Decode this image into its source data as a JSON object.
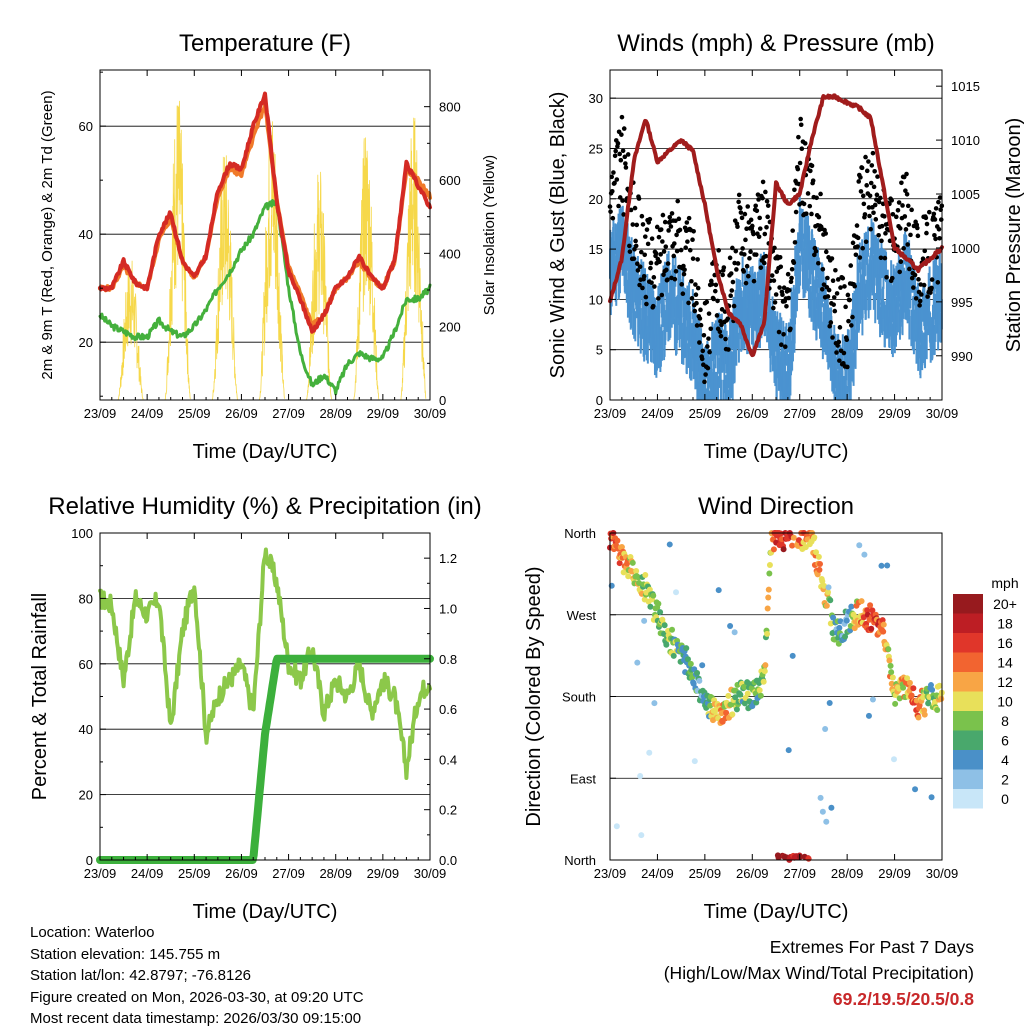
{
  "colors": {
    "temp": "#d42a24",
    "temp9": "#f07a2a",
    "dew": "#44b03c",
    "solar": "#f6d84a",
    "wind": "#4b93d0",
    "gust": "#000000",
    "pressure": "#a01c1c",
    "rh": "#8cc84a",
    "precip": "#3cb03c",
    "extremes": "#c8282a"
  },
  "info": {
    "location": "Location: Waterloo",
    "elevation": "Station elevation: 145.755 m",
    "latlon": "Station lat/lon: 42.8797; -76.8126",
    "created": "Figure created on Mon, 2026-03-30, at 09:20 UTC",
    "recent": "Most recent data timestamp: 2026/03/30 09:15:00"
  },
  "extremes": {
    "title": "Extremes For Past 7 Days",
    "subtitle": "(High/Low/Max Wind/Total Precipitation)",
    "values": "69.2/19.5/20.5/0.8"
  },
  "chart_data": [
    {
      "type": "line",
      "title": "Temperature (F)",
      "xlabel": "Time (Day/UTC)",
      "ylabel": "2m & 9m T (Red, Orange) & 2m Td (Green)",
      "y2label": "Solar Insolation (Yellow)",
      "xticks": [
        "23/09",
        "24/09",
        "25/09",
        "26/09",
        "27/09",
        "28/09",
        "29/09",
        "30/09"
      ],
      "yticks": [
        "20",
        "40",
        "60"
      ],
      "y2ticks": [
        "0",
        "200",
        "400",
        "600",
        "800"
      ],
      "ylim": [
        9.3,
        70.4
      ],
      "y2lim": [
        0,
        900
      ],
      "grid": true,
      "x_days": [
        0,
        0.25,
        0.5,
        0.75,
        1,
        1.25,
        1.5,
        1.75,
        2,
        2.25,
        2.5,
        2.75,
        3,
        3.25,
        3.5,
        3.75,
        4,
        4.25,
        4.5,
        4.75,
        5,
        5.25,
        5.5,
        5.75,
        6,
        6.25,
        6.5,
        6.75,
        7
      ],
      "series": [
        {
          "name": "2m T",
          "values": [
            30,
            30,
            35,
            31,
            30,
            40,
            44,
            35,
            32,
            36,
            48,
            53,
            52,
            60,
            66,
            46,
            33,
            28,
            22,
            25,
            30,
            32,
            36,
            32,
            30,
            35,
            53,
            49,
            45
          ]
        },
        {
          "name": "9m T",
          "values": [
            30,
            30,
            34,
            31,
            30,
            39,
            43,
            35,
            32,
            36,
            47,
            52,
            51,
            58,
            64,
            46,
            34,
            29,
            23,
            25,
            30,
            32,
            35,
            32,
            30,
            35,
            52,
            50,
            47
          ]
        },
        {
          "name": "2m Td",
          "values": [
            25,
            23,
            22,
            21,
            21,
            24,
            22,
            21,
            23,
            26,
            30,
            33,
            37,
            40,
            45,
            46,
            30,
            18,
            12,
            14,
            11,
            16,
            18,
            17,
            17,
            22,
            28,
            28,
            30
          ]
        }
      ],
      "solar_daily_peaks": [
        400,
        860,
        700,
        820,
        650,
        760,
        800
      ]
    },
    {
      "type": "line",
      "title": "Winds (mph) & Pressure (mb)",
      "xlabel": "Time (Day/UTC)",
      "ylabel": "Sonic Wind & Gust (Blue, Black)",
      "y2label": "Station Pressure (Maroon)",
      "xticks": [
        "23/09",
        "24/09",
        "25/09",
        "26/09",
        "27/09",
        "28/09",
        "29/09",
        "30/09"
      ],
      "yticks": [
        "0",
        "5",
        "10",
        "15",
        "20",
        "25",
        "30"
      ],
      "y2ticks": [
        "990",
        "995",
        "1000",
        "1005",
        "1010",
        "1015"
      ],
      "ylim": [
        0,
        32.8
      ],
      "y2lim": [
        985.9,
        1016.5
      ],
      "grid": true,
      "x_days": [
        0,
        0.25,
        0.5,
        0.75,
        1,
        1.25,
        1.5,
        1.75,
        2,
        2.25,
        2.5,
        2.75,
        3,
        3.25,
        3.5,
        3.75,
        4,
        4.25,
        4.5,
        4.75,
        5,
        5.25,
        5.5,
        5.75,
        6,
        6.25,
        6.5,
        6.75,
        7
      ],
      "series": [
        {
          "name": "Sonic Wind",
          "values": [
            14,
            17,
            12,
            10,
            8,
            12,
            10,
            8,
            2,
            6,
            4,
            11,
            10,
            12,
            6,
            4,
            17,
            14,
            10,
            4,
            3,
            12,
            15,
            12,
            10,
            14,
            8,
            10,
            12
          ]
        },
        {
          "name": "Gust",
          "values": [
            19,
            24,
            17,
            14,
            13,
            17,
            15,
            13,
            6,
            11,
            9,
            17,
            15,
            18,
            11,
            8,
            24,
            20,
            15,
            9,
            7,
            18,
            21,
            17,
            15,
            19,
            13,
            15,
            16
          ]
        },
        {
          "name": "Station Pressure",
          "values": [
            995,
            999,
            1008,
            1012,
            1008,
            1009,
            1010,
            1009,
            1004,
            998,
            994,
            993,
            990,
            993,
            1006,
            1004,
            1005,
            1010,
            1014,
            1014,
            1013.5,
            1013,
            1012,
            1006,
            1000,
            999,
            998,
            999,
            1000
          ]
        }
      ]
    },
    {
      "type": "line",
      "title": "Relative Humidity (%) & Precipitation (in)",
      "xlabel": "Time (Day/UTC)",
      "ylabel": "Percent & Total Rainfall",
      "xticks": [
        "23/09",
        "24/09",
        "25/09",
        "26/09",
        "27/09",
        "28/09",
        "29/09",
        "30/09"
      ],
      "yticks": [
        "0",
        "20",
        "40",
        "60",
        "80",
        "100"
      ],
      "y2ticks": [
        "0.0",
        "0.2",
        "0.4",
        "0.6",
        "0.8",
        "1.0",
        "1.2"
      ],
      "ylim": [
        0,
        100
      ],
      "y2lim": [
        0,
        1.3
      ],
      "grid": true,
      "x_days": [
        0,
        0.25,
        0.5,
        0.75,
        1,
        1.25,
        1.5,
        1.75,
        2,
        2.25,
        2.5,
        2.75,
        3,
        3.25,
        3.5,
        3.75,
        4,
        4.25,
        4.5,
        4.75,
        5,
        5.25,
        5.5,
        5.75,
        6,
        6.25,
        6.5,
        6.75,
        7
      ],
      "series": [
        {
          "name": "Relative Humidity",
          "values": [
            80,
            78,
            55,
            80,
            75,
            80,
            40,
            70,
            85,
            38,
            50,
            55,
            60,
            45,
            95,
            85,
            60,
            55,
            65,
            45,
            55,
            50,
            60,
            45,
            55,
            50,
            28,
            50,
            55
          ]
        },
        {
          "name": "Total Precipitation",
          "values": [
            0,
            0,
            0,
            0,
            0,
            0,
            0,
            0,
            0,
            0,
            0,
            0,
            0,
            0,
            0.5,
            0.8,
            0.8,
            0.8,
            0.8,
            0.8,
            0.8,
            0.8,
            0.8,
            0.8,
            0.8,
            0.8,
            0.8,
            0.8,
            0.8
          ]
        }
      ]
    },
    {
      "type": "scatter",
      "title": "Wind Direction",
      "xlabel": "Time (Day/UTC)",
      "ylabel": "Direction (Colored By Speed)",
      "xticks": [
        "23/09",
        "24/09",
        "25/09",
        "26/09",
        "27/09",
        "28/09",
        "29/09",
        "30/09"
      ],
      "yticks": [
        "North",
        "East",
        "South",
        "West",
        "North"
      ],
      "ylim": [
        0,
        360
      ],
      "grid": true,
      "x_days": [
        0,
        0.25,
        0.5,
        0.75,
        1,
        1.25,
        1.5,
        1.75,
        2,
        2.25,
        2.5,
        2.75,
        3,
        3.25,
        3.4,
        3.5,
        3.75,
        4,
        4.25,
        4.5,
        4.75,
        5,
        5.25,
        5.5,
        5.75,
        6,
        6.25,
        6.5,
        6.75,
        7
      ],
      "direction_deg": [
        355,
        330,
        320,
        300,
        270,
        245,
        230,
        205,
        180,
        160,
        170,
        185,
        180,
        200,
        350,
        355,
        358,
        358,
        355,
        300,
        250,
        260,
        275,
        265,
        250,
        185,
        195,
        170,
        178,
        180
      ],
      "speed_mph": [
        16,
        12,
        10,
        9,
        7,
        8,
        6,
        6,
        4,
        12,
        10,
        8,
        6,
        8,
        10,
        18,
        16,
        14,
        12,
        12,
        6,
        4,
        12,
        16,
        14,
        8,
        12,
        14,
        6,
        10
      ],
      "legend": {
        "title": "mph",
        "labels": [
          "20+",
          "18",
          "16",
          "14",
          "12",
          "10",
          "8",
          "6",
          "4",
          "2",
          "0"
        ],
        "colors": [
          "#971a1e",
          "#bd1e24",
          "#e0362a",
          "#f26430",
          "#f8a545",
          "#e8e05a",
          "#7ac24c",
          "#49a86c",
          "#4a90c8",
          "#8ec0e6",
          "#c8e6f8"
        ]
      }
    }
  ]
}
